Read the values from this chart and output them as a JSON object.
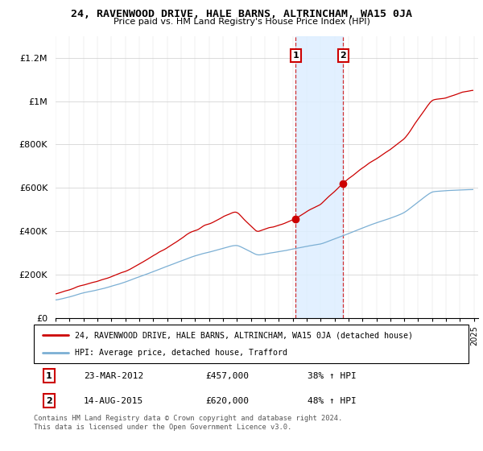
{
  "title": "24, RAVENWOOD DRIVE, HALE BARNS, ALTRINCHAM, WA15 0JA",
  "subtitle": "Price paid vs. HM Land Registry's House Price Index (HPI)",
  "red_label": "24, RAVENWOOD DRIVE, HALE BARNS, ALTRINCHAM, WA15 0JA (detached house)",
  "blue_label": "HPI: Average price, detached house, Trafford",
  "sale1_date": "23-MAR-2012",
  "sale1_price": 457000,
  "sale1_pct": "38%",
  "sale2_date": "14-AUG-2015",
  "sale2_price": 620000,
  "sale2_pct": "48%",
  "footer": "Contains HM Land Registry data © Crown copyright and database right 2024.\nThis data is licensed under the Open Government Licence v3.0.",
  "red_color": "#cc0000",
  "blue_color": "#7bafd4",
  "shade_color": "#ddeeff",
  "ylim": [
    0,
    1300000
  ],
  "yticks": [
    0,
    200000,
    400000,
    600000,
    800000,
    1000000,
    1200000
  ],
  "ytick_labels": [
    "£0",
    "£200K",
    "£400K",
    "£600K",
    "£800K",
    "£1M",
    "£1.2M"
  ],
  "sale1_x": 2012.208,
  "sale2_x": 2015.625
}
